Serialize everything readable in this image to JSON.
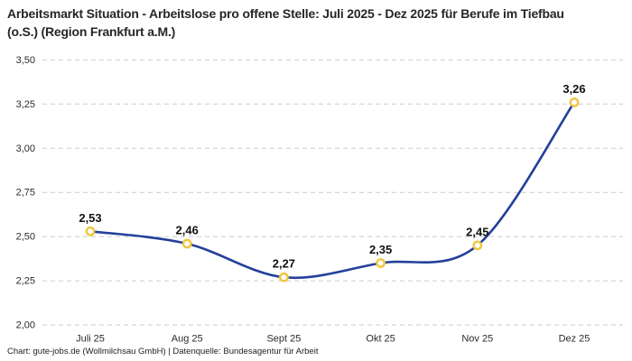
{
  "header": {
    "title": "Arbeitsmarkt Situation - Arbeitslose pro offene Stelle: Juli 2025 - Dez 2025 für Berufe im Tiefbau (o.S.) (Region Frankfurt a.M.)"
  },
  "footer": {
    "attribution": "Chart: gute-jobs.de (Wollmilchsau GmbH) | Datenquelle: Bundesagentur für Arbeit"
  },
  "chart_data": {
    "type": "line",
    "title": "Arbeitsmarkt Situation - Arbeitslose pro offene Stelle: Juli 2025 - Dez 2025 für Berufe im Tiefbau (o.S.) (Region Frankfurt a.M.)",
    "categories": [
      "Juli 25",
      "Aug 25",
      "Sept 25",
      "Okt 25",
      "Nov 25",
      "Dez 25"
    ],
    "values": [
      2.53,
      2.46,
      2.27,
      2.35,
      2.45,
      3.26
    ],
    "point_labels": [
      "2,53",
      "2,46",
      "2,27",
      "2,35",
      "2,45",
      "3,26"
    ],
    "xlabel": "",
    "ylabel": "",
    "ylim": [
      2.0,
      3.5
    ],
    "ytick_step": 0.25,
    "ytick_labels": [
      "2,00",
      "2,25",
      "2,50",
      "2,75",
      "3,00",
      "3,25",
      "3,50"
    ],
    "grid": "horizontal-dashed",
    "legend": "none",
    "line_style": "smooth",
    "colors": {
      "line": "#24409A",
      "marker_stroke": "#F2C53D",
      "marker_fill": "#FFFFFF",
      "grid": "#CBCBCB",
      "point_label": "#111111",
      "axis_text": "#2B2B2B",
      "title": "#262626",
      "background": "#FFFFFF"
    }
  }
}
